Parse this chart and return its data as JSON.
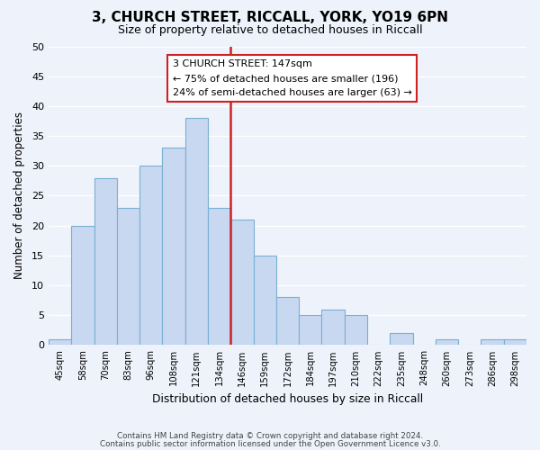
{
  "title": "3, CHURCH STREET, RICCALL, YORK, YO19 6PN",
  "subtitle": "Size of property relative to detached houses in Riccall",
  "xlabel": "Distribution of detached houses by size in Riccall",
  "ylabel": "Number of detached properties",
  "bar_labels": [
    "45sqm",
    "58sqm",
    "70sqm",
    "83sqm",
    "96sqm",
    "108sqm",
    "121sqm",
    "134sqm",
    "146sqm",
    "159sqm",
    "172sqm",
    "184sqm",
    "197sqm",
    "210sqm",
    "222sqm",
    "235sqm",
    "248sqm",
    "260sqm",
    "273sqm",
    "286sqm",
    "298sqm"
  ],
  "bar_values": [
    1,
    20,
    28,
    23,
    30,
    33,
    38,
    23,
    21,
    15,
    8,
    5,
    6,
    5,
    0,
    2,
    0,
    1,
    0,
    1,
    1
  ],
  "bar_color": "#c8d8f0",
  "bar_edge_color": "#7aafd4",
  "property_line_index": 8,
  "annotation_title": "3 CHURCH STREET: 147sqm",
  "annotation_line1": "← 75% of detached houses are smaller (196)",
  "annotation_line2": "24% of semi-detached houses are larger (63) →",
  "ylim": [
    0,
    50
  ],
  "yticks": [
    0,
    5,
    10,
    15,
    20,
    25,
    30,
    35,
    40,
    45,
    50
  ],
  "footer1": "Contains HM Land Registry data © Crown copyright and database right 2024.",
  "footer2": "Contains public sector information licensed under the Open Government Licence v3.0.",
  "background_color": "#edf2fb",
  "grid_color": "#ffffff",
  "annotation_box_color": "#ffffff",
  "annotation_box_edge": "#cc2222",
  "property_line_color": "#cc2222"
}
